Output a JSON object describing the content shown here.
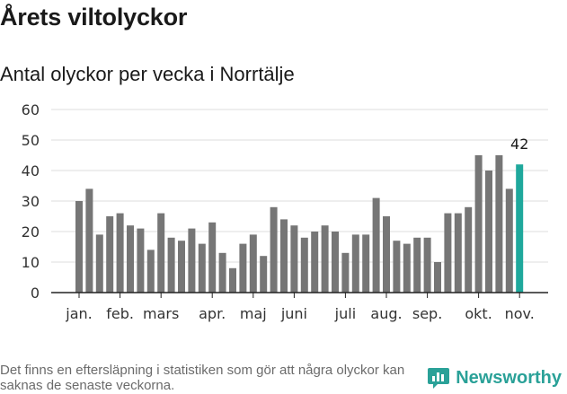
{
  "title": "Årets viltolyckor",
  "subtitle": "Antal olyckor per vecka i Norrtälje",
  "footnote": "Det finns en eftersläpning i statistiken som gör att några olyckor kan saknas de senaste veckorna.",
  "brand": {
    "name": "Newsworthy",
    "icon": "newsworthy-logo-icon",
    "color": "#2aa198"
  },
  "colors": {
    "bar": "#767676",
    "highlight": "#1fa89c",
    "grid": "#dddddd",
    "axis": "#222222"
  },
  "chart_data": {
    "type": "bar",
    "title": "Antal olyckor per vecka i Norrtälje",
    "xlabel": "",
    "ylabel": "",
    "ylim": [
      0,
      60
    ],
    "yticks": [
      0,
      10,
      20,
      30,
      40,
      50,
      60
    ],
    "grid": true,
    "x_tick_labels": [
      {
        "label": "jan.",
        "index": 0
      },
      {
        "label": "feb.",
        "index": 4
      },
      {
        "label": "mars",
        "index": 8
      },
      {
        "label": "apr.",
        "index": 13
      },
      {
        "label": "maj",
        "index": 17
      },
      {
        "label": "juni",
        "index": 21
      },
      {
        "label": "juli",
        "index": 26
      },
      {
        "label": "aug.",
        "index": 30
      },
      {
        "label": "sep.",
        "index": 34
      },
      {
        "label": "okt.",
        "index": 39
      },
      {
        "label": "nov.",
        "index": 43
      }
    ],
    "values": [
      30,
      34,
      19,
      25,
      26,
      22,
      21,
      14,
      26,
      18,
      17,
      21,
      16,
      23,
      13,
      8,
      16,
      19,
      12,
      28,
      24,
      22,
      18,
      20,
      22,
      20,
      13,
      19,
      19,
      31,
      25,
      17,
      16,
      18,
      18,
      10,
      26,
      26,
      28,
      45,
      40,
      45,
      34,
      42
    ],
    "highlight_index": 43,
    "annotations": [
      {
        "index": 43,
        "text": "42"
      }
    ]
  }
}
